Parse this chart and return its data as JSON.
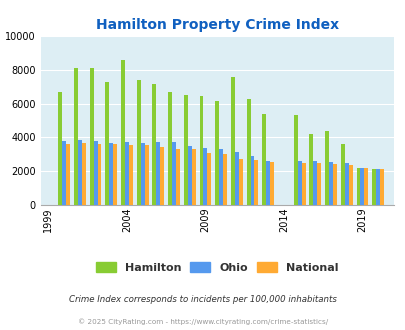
{
  "title": "Hamilton Property Crime Index",
  "title_color": "#1060c0",
  "years": [
    2000,
    2001,
    2002,
    2003,
    2004,
    2005,
    2006,
    2007,
    2008,
    2009,
    2010,
    2011,
    2012,
    2013,
    2015,
    2016,
    2017,
    2018,
    2019,
    2020
  ],
  "hamilton": [
    6700,
    8100,
    8100,
    7300,
    8600,
    7400,
    7150,
    6700,
    6500,
    6450,
    6150,
    7600,
    6300,
    5400,
    5350,
    4200,
    4350,
    3600,
    2200,
    2100
  ],
  "ohio": [
    3750,
    3850,
    3750,
    3680,
    3700,
    3680,
    3700,
    3700,
    3500,
    3350,
    3300,
    3100,
    2900,
    2580,
    2600,
    2580,
    2520,
    2450,
    2200,
    2100
  ],
  "national": [
    3600,
    3650,
    3600,
    3600,
    3550,
    3550,
    3400,
    3330,
    3280,
    3050,
    2980,
    2700,
    2650,
    2550,
    2500,
    2460,
    2430,
    2360,
    2200,
    2100
  ],
  "hamilton_color": "#88cc33",
  "ohio_color": "#5599ee",
  "national_color": "#ffaa33",
  "ylim": [
    0,
    10000
  ],
  "yticks": [
    0,
    2000,
    4000,
    6000,
    8000,
    10000
  ],
  "xtick_labels": [
    "1999",
    "2004",
    "2009",
    "2014",
    "2019"
  ],
  "xtick_positions": [
    1999,
    2004,
    2009,
    2014,
    2019
  ],
  "plot_bg": "#ddeef4",
  "legend_labels": [
    "Hamilton",
    "Ohio",
    "National"
  ],
  "footnote1": "Crime Index corresponds to incidents per 100,000 inhabitants",
  "footnote2": "© 2025 CityRating.com - https://www.cityrating.com/crime-statistics/",
  "footnote1_color": "#333333",
  "footnote2_color": "#999999"
}
